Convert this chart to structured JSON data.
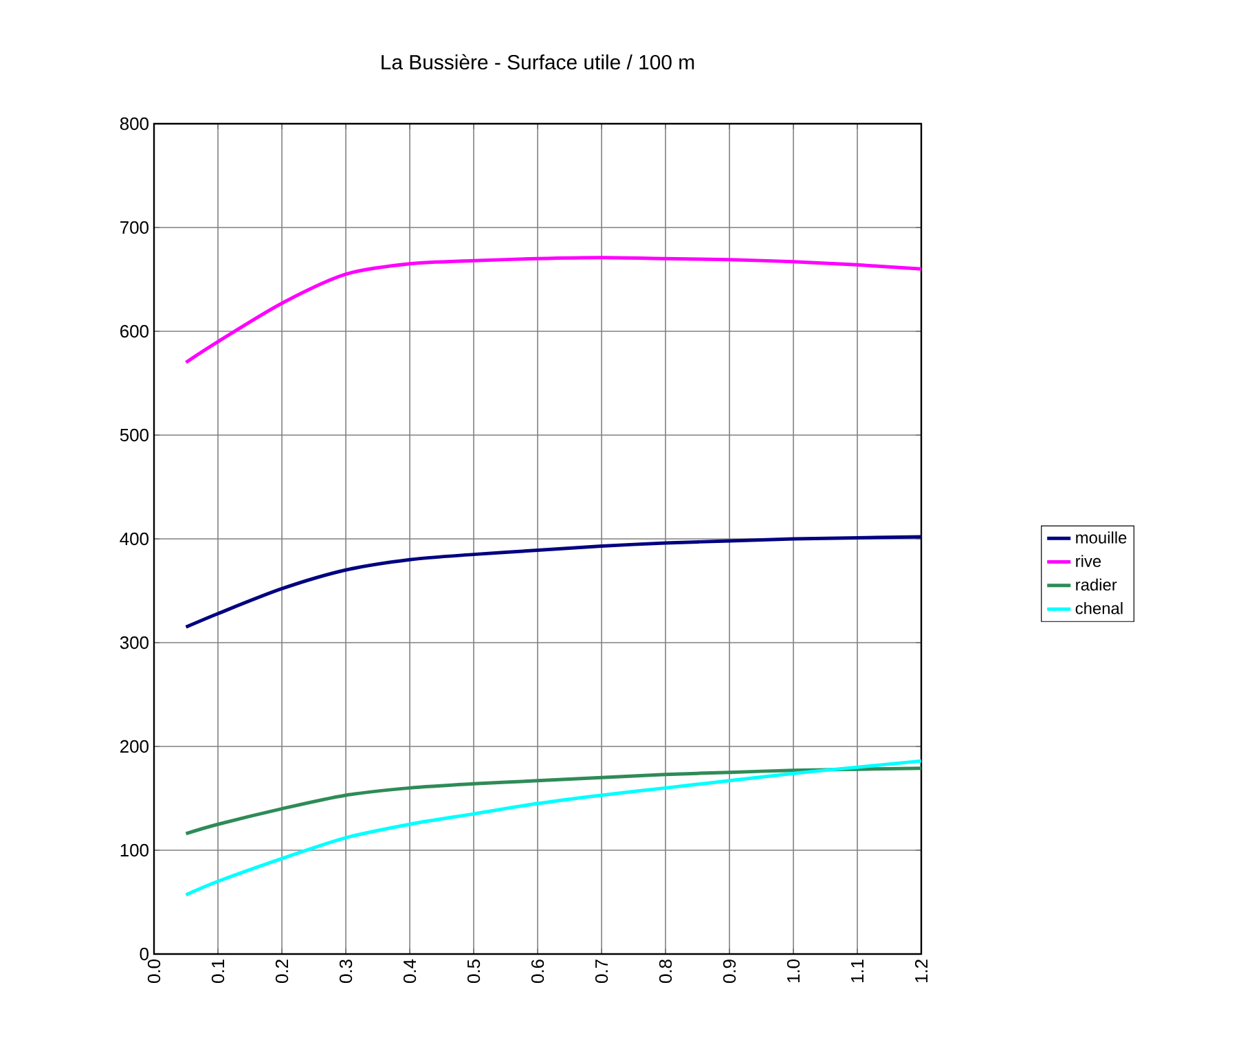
{
  "chart_data": {
    "type": "line",
    "title": "La Bussière - Surface utile / 100 m",
    "x": [
      0.05,
      0.1,
      0.2,
      0.3,
      0.4,
      0.5,
      0.6,
      0.7,
      0.8,
      0.9,
      1.0,
      1.1,
      1.2
    ],
    "series": [
      {
        "name": "mouille",
        "color": "#000080",
        "values": [
          315,
          328,
          352,
          370,
          380,
          385,
          389,
          393,
          396,
          398,
          400,
          401,
          402
        ]
      },
      {
        "name": "rive",
        "color": "#ff00ff",
        "values": [
          570,
          590,
          627,
          655,
          665,
          668,
          670,
          671,
          670,
          669,
          667,
          664,
          660
        ]
      },
      {
        "name": "radier",
        "color": "#2e8b57",
        "values": [
          116,
          125,
          140,
          153,
          160,
          164,
          167,
          170,
          173,
          175,
          177,
          178,
          179
        ]
      },
      {
        "name": "chenal",
        "color": "#00ffff",
        "values": [
          57,
          70,
          92,
          112,
          125,
          135,
          145,
          153,
          160,
          167,
          174,
          180,
          186
        ]
      }
    ],
    "xlim": [
      0,
      1.2
    ],
    "xticks": [
      {
        "value": 0,
        "label": "0.0"
      },
      {
        "value": 0.1,
        "label": "0.1"
      },
      {
        "value": 0.2,
        "label": "0.2"
      },
      {
        "value": 0.3,
        "label": "0.3"
      },
      {
        "value": 0.4,
        "label": "0.4"
      },
      {
        "value": 0.5,
        "label": "0.5"
      },
      {
        "value": 0.6,
        "label": "0.6"
      },
      {
        "value": 0.7,
        "label": "0.7"
      },
      {
        "value": 0.8,
        "label": "0.8"
      },
      {
        "value": 0.9,
        "label": "0.9"
      },
      {
        "value": 1.0,
        "label": "1.0"
      },
      {
        "value": 1.1,
        "label": "1.1"
      },
      {
        "value": 1.2,
        "label": "1.2"
      }
    ],
    "ylim": [
      0,
      800
    ],
    "yticks": [
      0,
      100,
      200,
      300,
      400,
      500,
      600,
      700,
      800
    ],
    "grid": true,
    "legend": "right",
    "marker": "none",
    "line_style": "solid"
  }
}
